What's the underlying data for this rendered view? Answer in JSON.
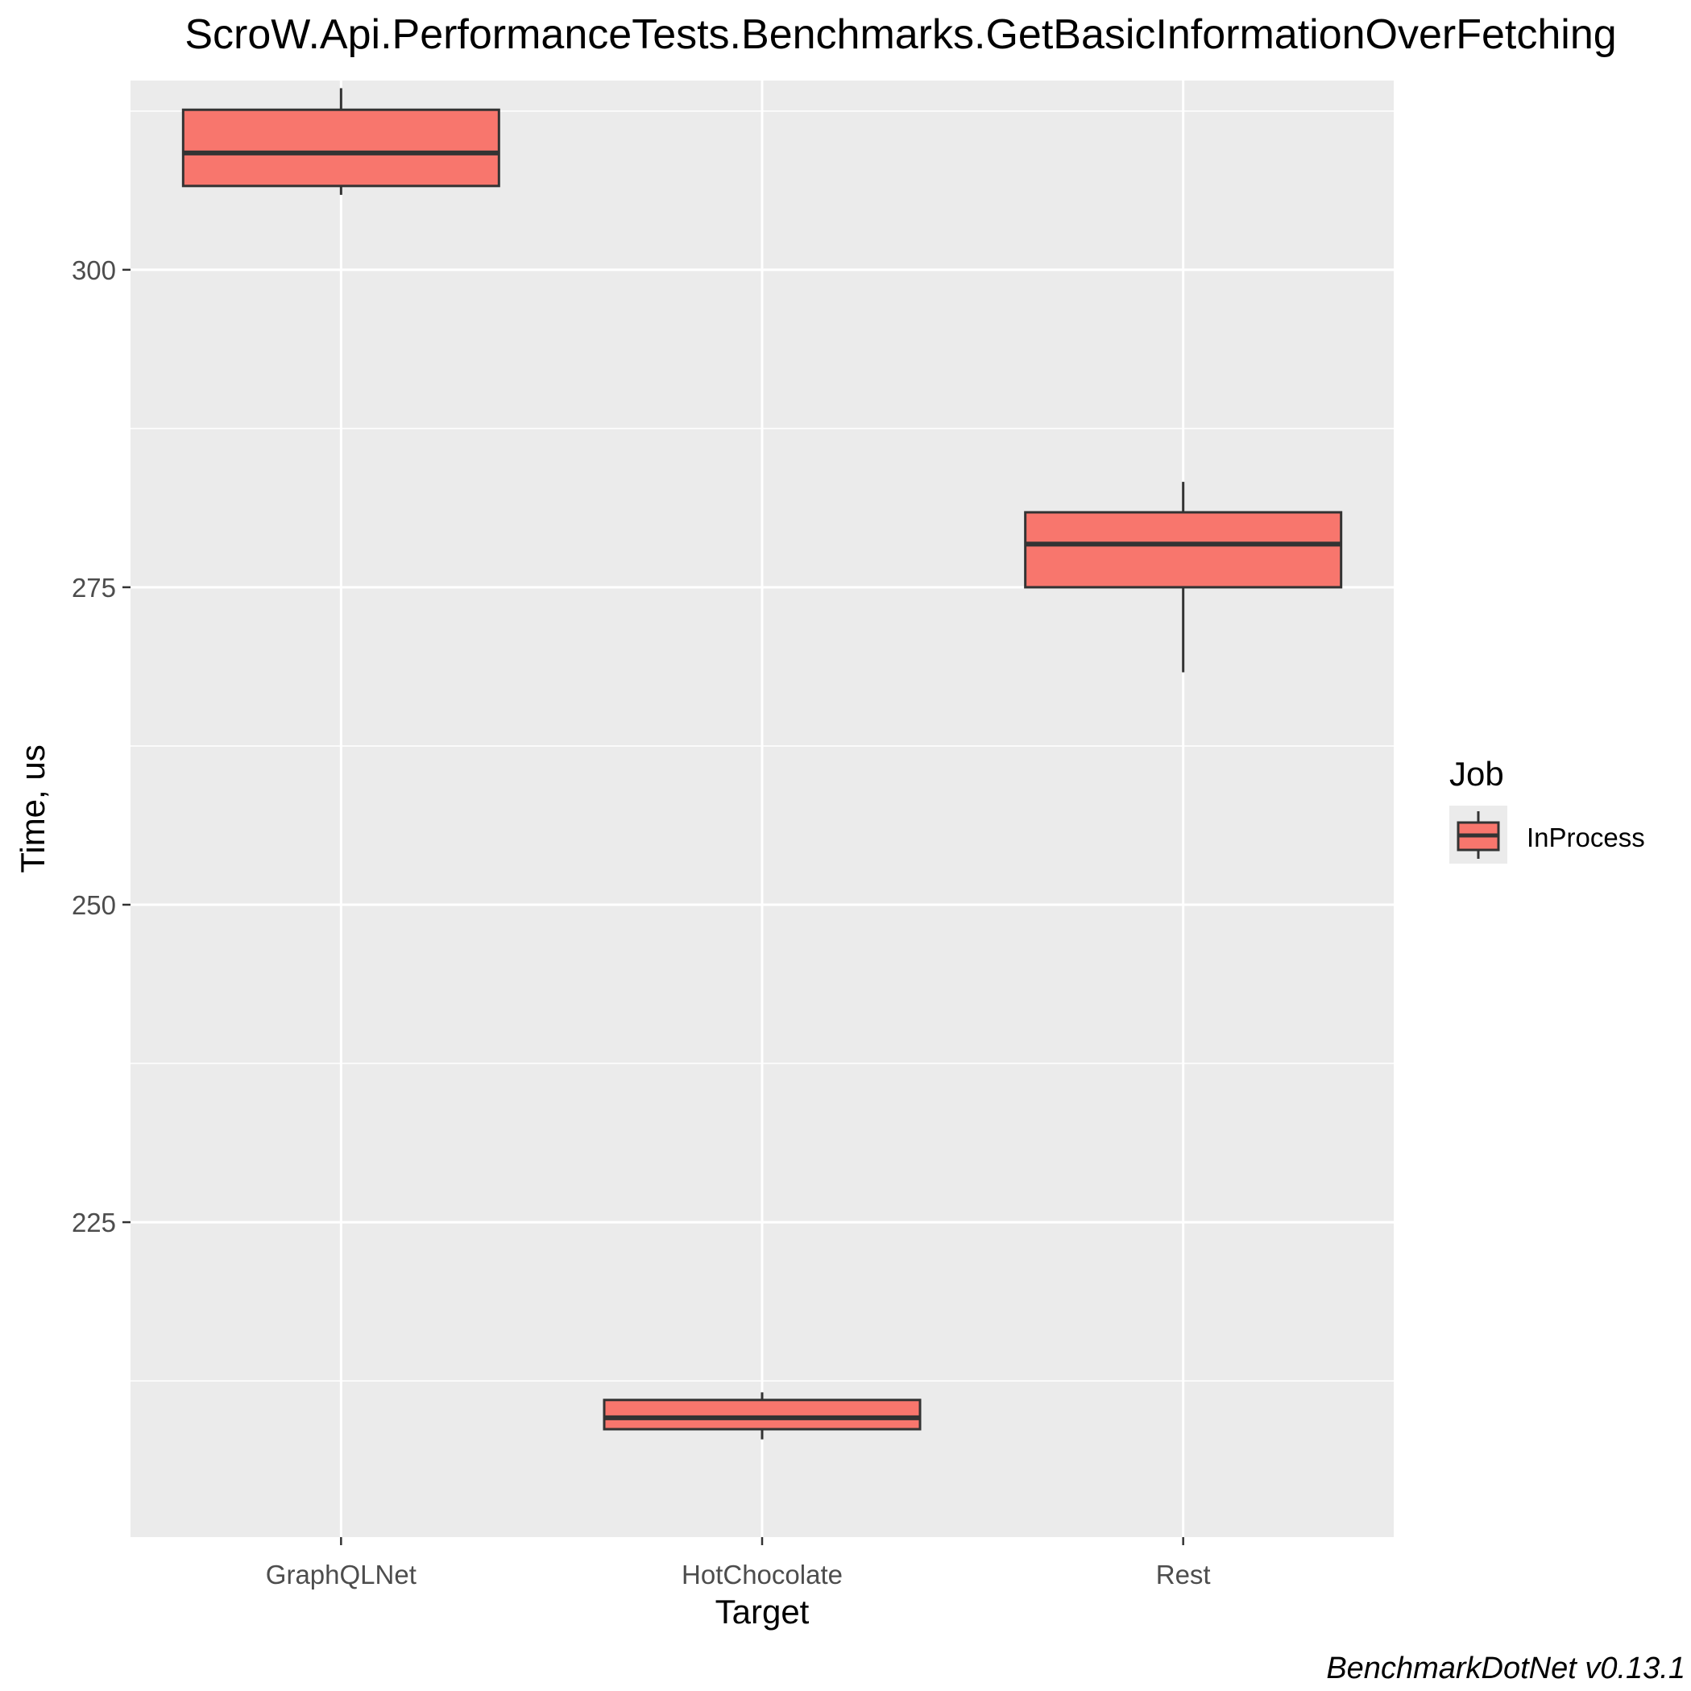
{
  "chart_data": {
    "type": "boxplot",
    "title": "ScroW.Api.PerformanceTests.Benchmarks.GetBasicInformationOverFetching",
    "xlabel": "Target",
    "ylabel": "Time, us",
    "categories": [
      "GraphQLNet",
      "HotChocolate",
      "Rest"
    ],
    "ylim": [
      200.2,
      314.9
    ],
    "y_ticks": [
      225,
      250,
      275,
      300
    ],
    "y_minor_ticks": [
      212.5,
      237.5,
      262.5,
      287.5,
      312.5
    ],
    "grid": true,
    "series": [
      {
        "name": "InProcess",
        "color": "#F8766D",
        "boxes": [
          {
            "category": "GraphQLNet",
            "min": 305.9,
            "q1": 306.6,
            "median": 309.2,
            "q3": 312.6,
            "max": 314.3
          },
          {
            "category": "HotChocolate",
            "min": 207.9,
            "q1": 208.7,
            "median": 209.6,
            "q3": 211.0,
            "max": 211.6
          },
          {
            "category": "Rest",
            "min": 268.3,
            "q1": 275.0,
            "median": 278.4,
            "q3": 280.9,
            "max": 283.3
          }
        ]
      }
    ],
    "legend": {
      "title": "Job",
      "entries": [
        "InProcess"
      ],
      "position": "right"
    },
    "caption": "BenchmarkDotNet v0.13.1"
  }
}
